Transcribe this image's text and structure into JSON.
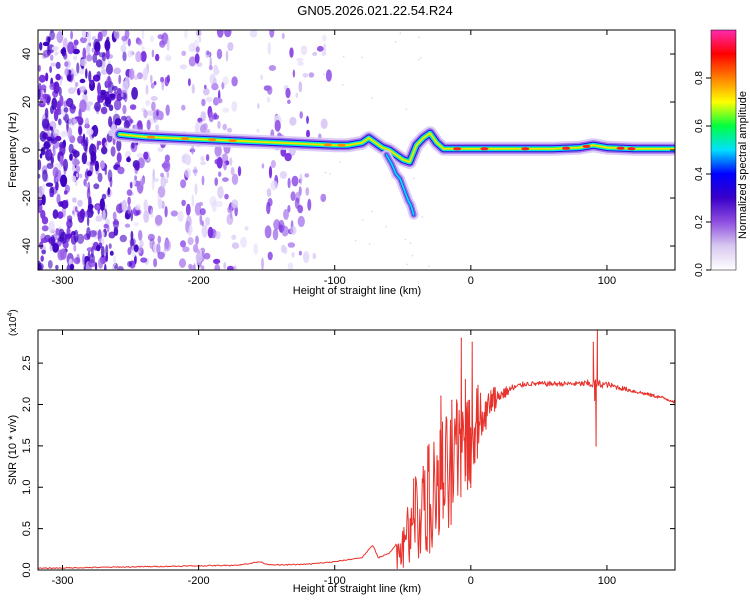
{
  "title": "GN05.2026.021.22.54.R24",
  "chart_data": [
    {
      "type": "heatmap",
      "xlabel": "Height of straight line (km)",
      "ylabel": "Frequency (Hz)",
      "xlim": [
        -318,
        150
      ],
      "ylim": [
        -50,
        50
      ],
      "xticks": [
        -300,
        -200,
        -100,
        0,
        100
      ],
      "xtick_labels": [
        "-300",
        "-200",
        "-100",
        "0",
        "100"
      ],
      "yticks": [
        -40,
        -20,
        0,
        20,
        40
      ],
      "ytick_labels": [
        "-40",
        "-20",
        "0",
        "20",
        "40"
      ],
      "colorbar": {
        "label": "Normalized spectral amplitude",
        "range": [
          0,
          1
        ],
        "ticks": [
          0.0,
          0.2,
          0.4,
          0.6,
          0.8
        ],
        "tick_labels": [
          "0.0",
          "0.2",
          "0.4",
          "0.6",
          "0.8"
        ],
        "colors": [
          "#ffffff",
          "#d8c8f0",
          "#8f4fe0",
          "#3a00c8",
          "#0000ff",
          "#00e0ff",
          "#00ff40",
          "#ffff00",
          "#ff8000",
          "#ff0000",
          "#ff2ab0"
        ]
      },
      "signal_trace": {
        "x": [
          -258,
          -240,
          -220,
          -200,
          -180,
          -160,
          -140,
          -120,
          -100,
          -90,
          -80,
          -75,
          -70,
          -65,
          -60,
          -55,
          -50,
          -45,
          -40,
          -35,
          -30,
          -25,
          -20,
          -10,
          0,
          20,
          40,
          60,
          80,
          90,
          100,
          120,
          150
        ],
        "y": [
          6.5,
          5.5,
          5,
          4.5,
          4,
          3.5,
          3,
          2.5,
          2,
          2,
          3,
          5,
          3,
          1,
          0,
          -2,
          -4,
          -5,
          2,
          5,
          7,
          3,
          0.5,
          0.5,
          0.5,
          0.5,
          0.5,
          0.5,
          1,
          2,
          1,
          0.5,
          0.5
        ]
      },
      "branch_trace": {
        "x": [
          -62,
          -58,
          -55,
          -52,
          -50,
          -48,
          -46,
          -44,
          -42
        ],
        "y": [
          -2,
          -6,
          -10,
          -12,
          -15,
          -18,
          -21,
          -23,
          -27
        ]
      }
    },
    {
      "type": "line",
      "xlabel": "Height of straight line (km)",
      "ylabel": "SNR (10 * v/v)",
      "y_multiplier_label": "(x10",
      "y_multiplier_exp": "4",
      "y_multiplier_close": ")",
      "xlim": [
        -318,
        150
      ],
      "ylim": [
        0,
        2.9
      ],
      "xticks": [
        -300,
        -200,
        -100,
        0,
        100
      ],
      "xtick_labels": [
        "-300",
        "-200",
        "-100",
        "0",
        "100"
      ],
      "yticks": [
        0.0,
        0.5,
        1.0,
        1.5,
        2.0,
        2.5
      ],
      "ytick_labels": [
        "0.0",
        "0.5",
        "1.0",
        "1.5",
        "2.0",
        "2.5"
      ],
      "line_color": "#e8322c",
      "baseline": {
        "x": [
          -318,
          -280,
          -240,
          -200,
          -170,
          -155,
          -150,
          -140,
          -120,
          -100,
          -80,
          -72,
          -68,
          -60,
          -55
        ],
        "y": [
          0.02,
          0.03,
          0.04,
          0.05,
          0.06,
          0.1,
          0.07,
          0.06,
          0.07,
          0.1,
          0.15,
          0.3,
          0.15,
          0.2,
          0.3
        ]
      },
      "envelope": {
        "x": [
          -55,
          -50,
          -45,
          -40,
          -35,
          -30,
          -25,
          -20,
          -15,
          -10,
          -5,
          0,
          5,
          10,
          15,
          20,
          30,
          40,
          60,
          80,
          90,
          100,
          120,
          140,
          150
        ],
        "lower": [
          0.0,
          0.0,
          0.05,
          0.1,
          0.1,
          0.2,
          0.3,
          0.4,
          0.5,
          0.6,
          0.9,
          1.0,
          1.3,
          1.6,
          1.8,
          1.95,
          2.1,
          2.2,
          2.2,
          2.2,
          2.15,
          2.18,
          2.12,
          2.05,
          2.0
        ],
        "upper": [
          0.4,
          0.6,
          0.9,
          1.2,
          1.4,
          1.65,
          1.7,
          1.9,
          2.0,
          2.2,
          2.3,
          2.4,
          2.3,
          2.2,
          2.2,
          2.25,
          2.28,
          2.3,
          2.3,
          2.3,
          2.35,
          2.3,
          2.2,
          2.12,
          2.07
        ]
      },
      "spikes": [
        {
          "x": -42,
          "y": 1.1
        },
        {
          "x": -35,
          "y": 1.25
        },
        {
          "x": -22,
          "y": 2.1
        },
        {
          "x": -20,
          "y": 1.05
        },
        {
          "x": -14,
          "y": 2.05
        },
        {
          "x": -10,
          "y": 2.0
        },
        {
          "x": -7,
          "y": 2.8
        },
        {
          "x": -4,
          "y": 2.3
        },
        {
          "x": 0,
          "y": 1.0
        },
        {
          "x": 1,
          "y": 2.75
        },
        {
          "x": 3,
          "y": 1.3
        },
        {
          "x": 90,
          "y": 2.75
        },
        {
          "x": 91,
          "y": 2.05
        },
        {
          "x": 92,
          "y": 1.5
        },
        {
          "x": 93,
          "y": 2.9
        }
      ]
    }
  ]
}
